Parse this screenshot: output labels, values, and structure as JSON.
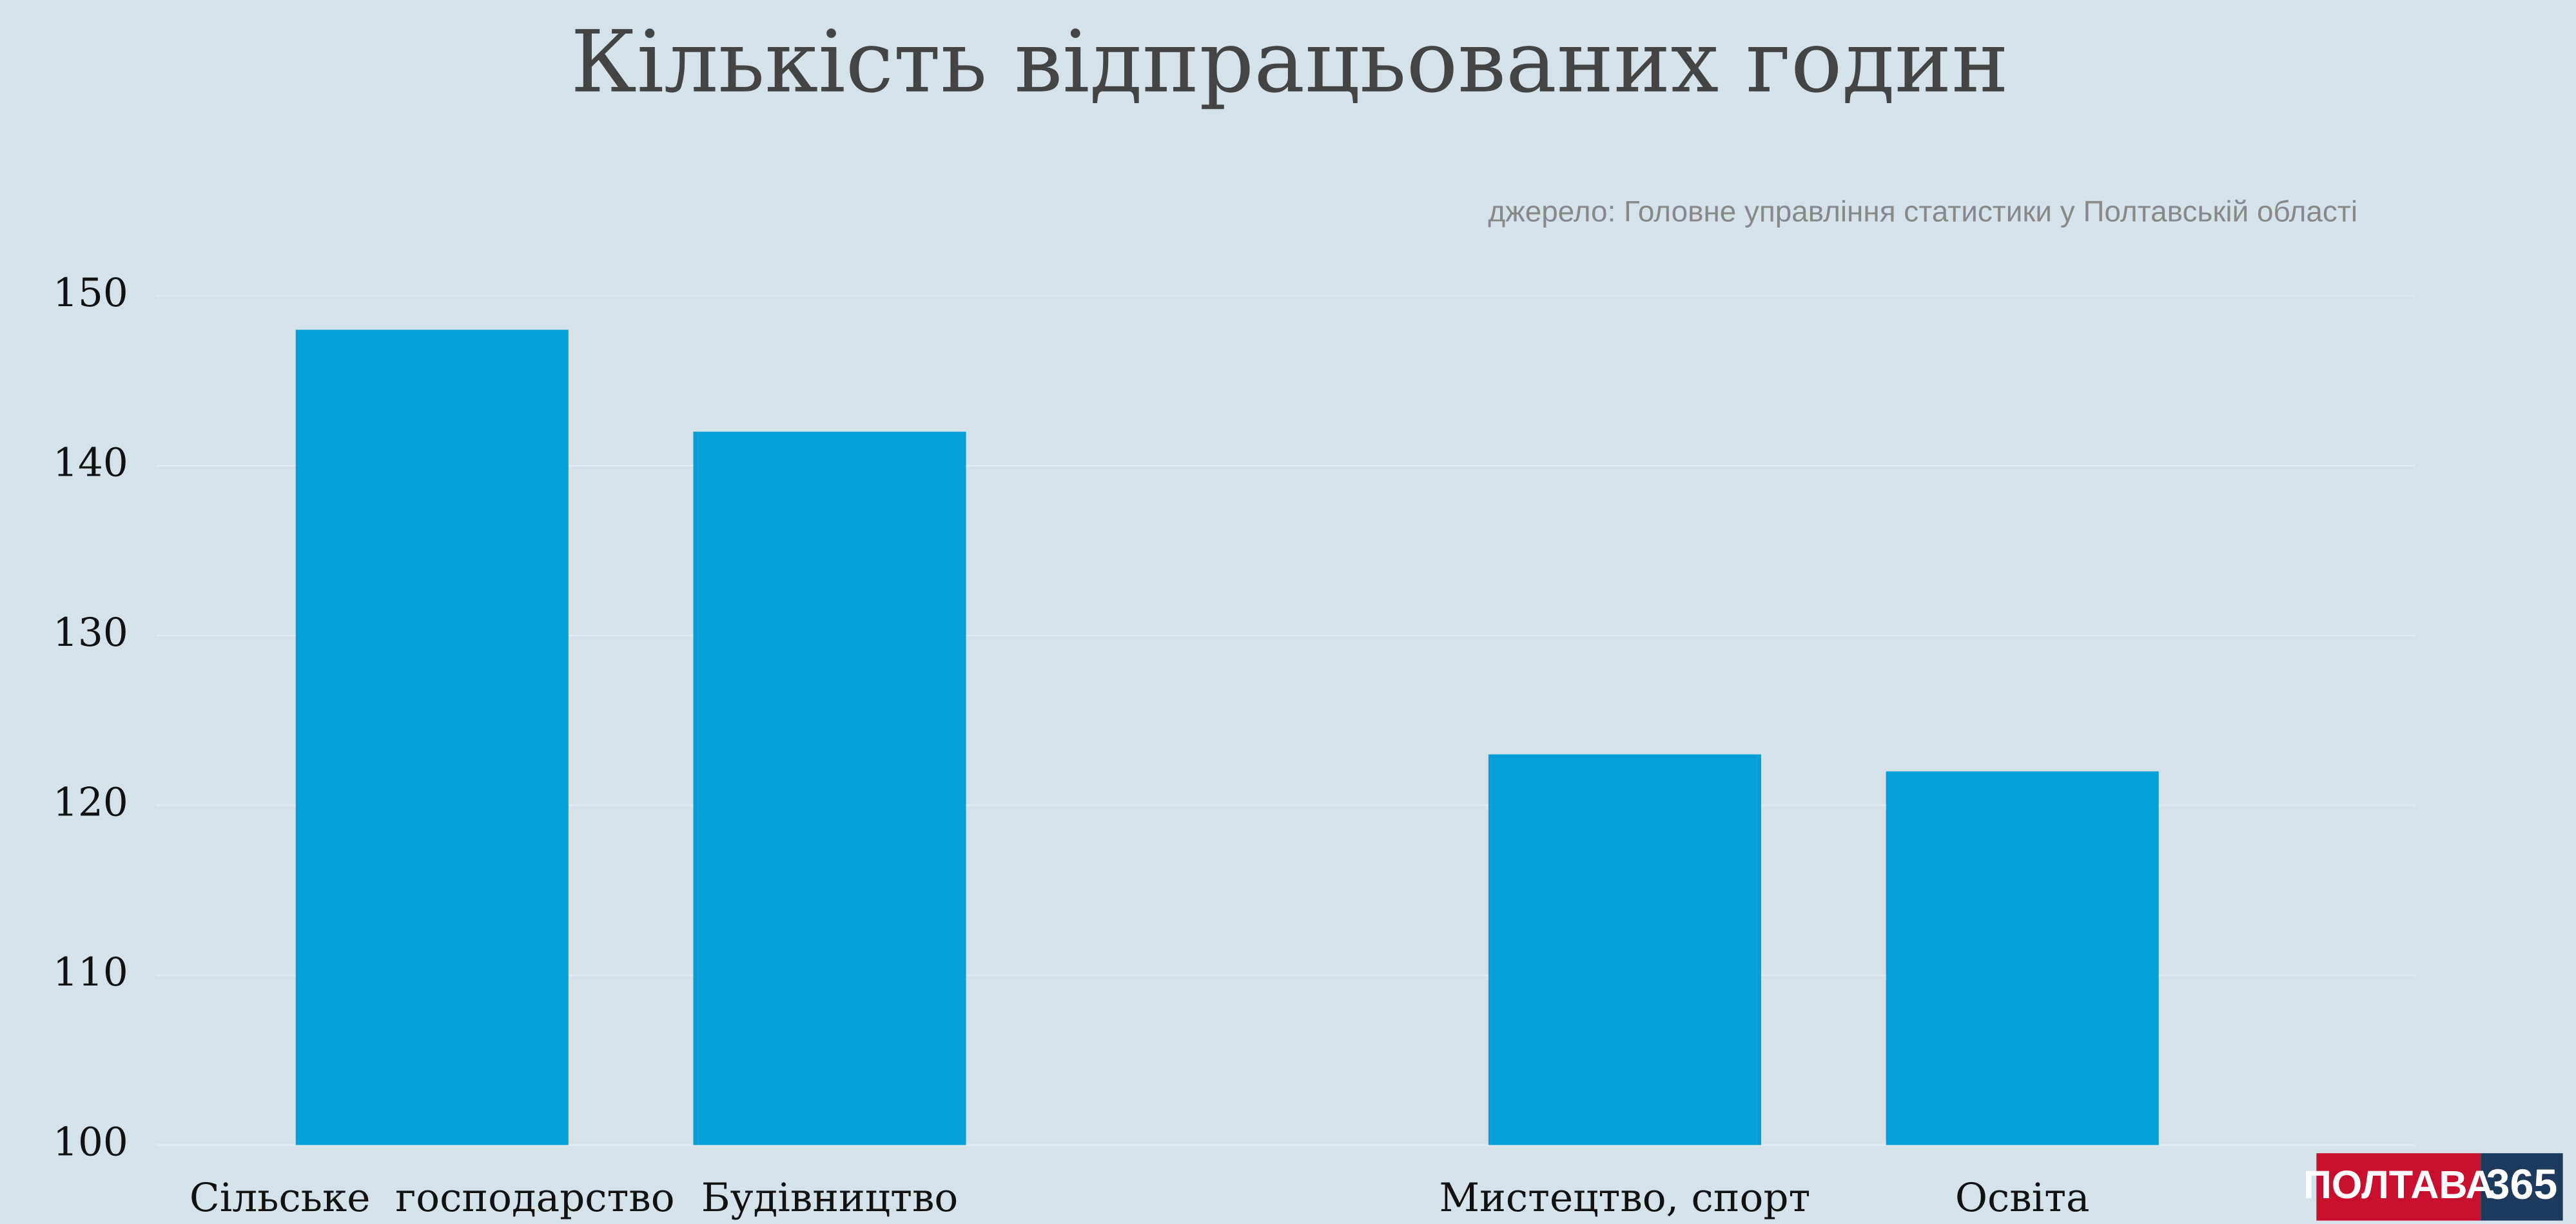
{
  "chart_data": {
    "type": "bar",
    "title": "Кількість відпрацьованих годин",
    "subtitle": "джерело: Головне управління статистики у Полтавській області",
    "categories": [
      "Сільське  господарство",
      "Будівництво",
      null,
      "Мистецтво, спорт",
      "Освіта"
    ],
    "values": [
      148,
      142,
      null,
      123,
      122
    ],
    "color": "#039fd6",
    "ylim": [
      100,
      150
    ],
    "yticks": [
      100,
      110,
      120,
      130,
      140,
      150
    ],
    "grid": true
  },
  "logo": {
    "name": "ПОЛТАВА",
    "number": "365"
  }
}
